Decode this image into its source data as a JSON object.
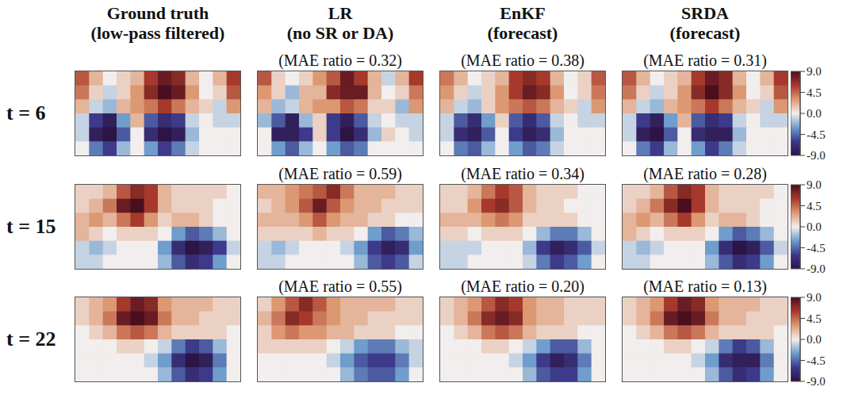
{
  "chart_data": [
    {
      "type": "heatmap",
      "title": "Ground truth",
      "subtitle": "(low-pass filtered)",
      "row_label": "t = 6",
      "tick_labels": false,
      "cells": [
        [
          5,
          2,
          0,
          1,
          2,
          6,
          8,
          7,
          2,
          0,
          2,
          6
        ],
        [
          4,
          1,
          -1,
          1,
          3,
          7,
          9,
          8,
          3,
          0,
          1,
          5
        ],
        [
          2,
          -1,
          -2,
          2,
          3,
          4,
          6,
          4,
          2,
          1,
          -1,
          3
        ],
        [
          -1,
          -6,
          -8,
          -3,
          2,
          -5,
          -7,
          -6,
          -1,
          0,
          -1,
          -1
        ],
        [
          -1,
          -8,
          -9,
          -5,
          0,
          -7,
          -9,
          -8,
          -2,
          0,
          0,
          0
        ],
        [
          0,
          -4,
          -6,
          -2,
          0,
          -3,
          -6,
          -4,
          -1,
          0,
          0,
          0
        ]
      ]
    },
    {
      "type": "heatmap",
      "title": "LR",
      "subtitle": "(no SR or DA)",
      "annotation": "(MAE ratio = 0.32)",
      "tick_labels": false,
      "cells": [
        [
          5,
          1,
          0,
          1,
          3,
          5,
          8,
          6,
          2,
          -1,
          2,
          6
        ],
        [
          3,
          1,
          -2,
          2,
          2,
          7,
          8,
          8,
          2,
          0,
          1,
          4
        ],
        [
          2,
          -2,
          -1,
          2,
          3,
          3,
          5,
          4,
          1,
          1,
          -2,
          3
        ],
        [
          -2,
          -5,
          -8,
          -2,
          1,
          -6,
          -8,
          -5,
          -1,
          0,
          -1,
          -1
        ],
        [
          0,
          -8,
          -8,
          -6,
          1,
          -6,
          -9,
          -7,
          -2,
          1,
          0,
          -1
        ],
        [
          0,
          -3,
          -5,
          -2,
          0,
          -3,
          -5,
          -4,
          0,
          0,
          0,
          0
        ]
      ]
    },
    {
      "type": "heatmap",
      "title": "EnKF",
      "subtitle": "(forecast)",
      "annotation": "(MAE ratio = 0.38)",
      "tick_labels": false,
      "cells": [
        [
          4,
          2,
          0,
          1,
          2,
          6,
          7,
          6,
          2,
          0,
          1,
          5
        ],
        [
          3,
          1,
          -1,
          1,
          3,
          6,
          8,
          7,
          3,
          0,
          1,
          4
        ],
        [
          2,
          -1,
          -2,
          1,
          3,
          4,
          5,
          4,
          2,
          1,
          -1,
          3
        ],
        [
          -1,
          -5,
          -7,
          -3,
          1,
          -5,
          -7,
          -5,
          -1,
          0,
          -1,
          -1
        ],
        [
          -1,
          -7,
          -8,
          -5,
          0,
          -6,
          -8,
          -7,
          -2,
          0,
          0,
          0
        ],
        [
          0,
          -4,
          -5,
          -2,
          0,
          -3,
          -5,
          -4,
          -1,
          0,
          0,
          0
        ]
      ]
    },
    {
      "type": "heatmap",
      "title": "SRDA",
      "subtitle": "(forecast)",
      "annotation": "(MAE ratio = 0.31)",
      "tick_labels": false,
      "cells": [
        [
          5,
          2,
          0,
          1,
          2,
          6,
          8,
          7,
          2,
          0,
          2,
          6
        ],
        [
          4,
          1,
          -1,
          1,
          3,
          7,
          9,
          7,
          3,
          0,
          1,
          5
        ],
        [
          2,
          -1,
          -2,
          2,
          3,
          4,
          6,
          4,
          2,
          1,
          -1,
          3
        ],
        [
          -1,
          -6,
          -8,
          -3,
          2,
          -5,
          -7,
          -6,
          -1,
          0,
          -1,
          -1
        ],
        [
          -1,
          -8,
          -9,
          -5,
          0,
          -7,
          -8,
          -8,
          -2,
          0,
          0,
          0
        ],
        [
          0,
          -4,
          -6,
          -2,
          0,
          -3,
          -6,
          -4,
          -1,
          0,
          0,
          0
        ]
      ],
      "colorbar": {
        "range": [
          -9,
          9
        ],
        "ticks": [
          {
            "value": 9,
            "label": "9.0"
          },
          4.5,
          {
            "value": 0,
            "label": "0.0"
          },
          -4.5,
          {
            "value": -9,
            "label": "-9.0"
          }
        ]
      }
    },
    {
      "type": "heatmap",
      "row_label": "t = 15",
      "tick_labels": false,
      "cells": [
        [
          1,
          1,
          2,
          5,
          7,
          6,
          2,
          1,
          1,
          1,
          1,
          0
        ],
        [
          1,
          2,
          4,
          8,
          9,
          6,
          2,
          1,
          1,
          1,
          0,
          0
        ],
        [
          2,
          3,
          2,
          4,
          6,
          3,
          1,
          2,
          2,
          1,
          0,
          0
        ],
        [
          2,
          1,
          0,
          1,
          1,
          1,
          0,
          -3,
          -5,
          -4,
          -2,
          0
        ],
        [
          -1,
          -2,
          -1,
          0,
          0,
          0,
          -3,
          -7,
          -9,
          -8,
          -6,
          -1
        ],
        [
          -1,
          -1,
          0,
          0,
          0,
          0,
          -2,
          -5,
          -7,
          -6,
          -3,
          0
        ]
      ]
    },
    {
      "type": "heatmap",
      "annotation": "(MAE ratio = 0.59)",
      "tick_labels": false,
      "cells": [
        [
          2,
          2,
          3,
          4,
          5,
          7,
          4,
          2,
          2,
          2,
          1,
          1
        ],
        [
          1,
          2,
          3,
          5,
          8,
          5,
          3,
          2,
          2,
          1,
          1,
          1
        ],
        [
          2,
          2,
          2,
          3,
          5,
          3,
          2,
          2,
          1,
          1,
          0,
          0
        ],
        [
          1,
          1,
          1,
          1,
          2,
          1,
          1,
          0,
          -3,
          -5,
          -4,
          -2
        ],
        [
          -1,
          -2,
          -1,
          0,
          0,
          0,
          -1,
          -3,
          -6,
          -8,
          -7,
          -3
        ],
        [
          -1,
          -1,
          0,
          0,
          0,
          0,
          0,
          -2,
          -5,
          -6,
          -5,
          -1
        ]
      ]
    },
    {
      "type": "heatmap",
      "annotation": "(MAE ratio = 0.34)",
      "tick_labels": false,
      "cells": [
        [
          1,
          1,
          2,
          4,
          6,
          5,
          2,
          1,
          1,
          1,
          0,
          0
        ],
        [
          1,
          1,
          3,
          6,
          7,
          5,
          2,
          1,
          1,
          0,
          0,
          0
        ],
        [
          2,
          2,
          2,
          3,
          4,
          3,
          1,
          1,
          1,
          1,
          0,
          0
        ],
        [
          1,
          1,
          0,
          1,
          1,
          1,
          0,
          -2,
          -4,
          -4,
          -2,
          0
        ],
        [
          -1,
          -1,
          -1,
          0,
          0,
          0,
          -2,
          -6,
          -8,
          -7,
          -5,
          -1
        ],
        [
          -1,
          -1,
          0,
          0,
          0,
          0,
          -1,
          -4,
          -6,
          -5,
          -3,
          0
        ]
      ]
    },
    {
      "type": "heatmap",
      "annotation": "(MAE ratio = 0.28)",
      "tick_labels": false,
      "cells": [
        [
          1,
          1,
          2,
          5,
          7,
          6,
          2,
          1,
          1,
          1,
          1,
          0
        ],
        [
          1,
          2,
          4,
          7,
          9,
          6,
          2,
          1,
          1,
          1,
          0,
          0
        ],
        [
          2,
          3,
          2,
          4,
          6,
          3,
          1,
          2,
          2,
          1,
          0,
          0
        ],
        [
          2,
          1,
          0,
          1,
          1,
          1,
          0,
          -3,
          -5,
          -4,
          -2,
          0
        ],
        [
          -1,
          -2,
          -1,
          0,
          0,
          0,
          -3,
          -7,
          -9,
          -8,
          -5,
          -1
        ],
        [
          -1,
          -1,
          0,
          0,
          0,
          0,
          -2,
          -5,
          -7,
          -6,
          -3,
          0
        ]
      ],
      "colorbar": {
        "range": [
          -9,
          9
        ],
        "ticks": [
          {
            "value": 9,
            "label": "9.0"
          },
          4.5,
          {
            "value": 0,
            "label": "0.0"
          },
          -4.5,
          {
            "value": -9,
            "label": "-9.0"
          }
        ]
      }
    },
    {
      "type": "heatmap",
      "row_label": "t = 22",
      "tick_labels": false,
      "cells": [
        [
          1,
          2,
          3,
          6,
          8,
          7,
          3,
          2,
          2,
          2,
          1,
          1
        ],
        [
          1,
          2,
          4,
          8,
          9,
          8,
          4,
          2,
          2,
          1,
          1,
          1
        ],
        [
          0,
          1,
          2,
          4,
          5,
          4,
          2,
          1,
          1,
          1,
          1,
          0
        ],
        [
          0,
          0,
          0,
          1,
          1,
          0,
          -1,
          -4,
          -6,
          -5,
          -2,
          0
        ],
        [
          0,
          0,
          0,
          0,
          0,
          -1,
          -3,
          -7,
          -9,
          -8,
          -4,
          0
        ],
        [
          0,
          0,
          0,
          0,
          0,
          0,
          -2,
          -5,
          -7,
          -6,
          -3,
          0
        ]
      ]
    },
    {
      "type": "heatmap",
      "annotation": "(MAE ratio = 0.55)",
      "tick_labels": false,
      "cells": [
        [
          1,
          3,
          5,
          7,
          5,
          3,
          2,
          2,
          2,
          2,
          1,
          1
        ],
        [
          2,
          4,
          7,
          6,
          4,
          3,
          2,
          2,
          1,
          1,
          1,
          1
        ],
        [
          1,
          3,
          4,
          3,
          3,
          2,
          2,
          1,
          1,
          1,
          0,
          0
        ],
        [
          1,
          1,
          1,
          1,
          1,
          0,
          -1,
          -3,
          -4,
          -4,
          -2,
          -1
        ],
        [
          0,
          0,
          0,
          0,
          0,
          -1,
          -3,
          -5,
          -6,
          -6,
          -4,
          -1
        ],
        [
          0,
          0,
          0,
          0,
          0,
          0,
          -2,
          -4,
          -5,
          -5,
          -3,
          0
        ]
      ]
    },
    {
      "type": "heatmap",
      "annotation": "(MAE ratio = 0.20)",
      "tick_labels": false,
      "cells": [
        [
          1,
          2,
          3,
          5,
          7,
          6,
          3,
          2,
          2,
          1,
          1,
          1
        ],
        [
          1,
          2,
          4,
          7,
          8,
          7,
          3,
          2,
          2,
          1,
          1,
          1
        ],
        [
          0,
          1,
          2,
          4,
          5,
          4,
          2,
          1,
          1,
          1,
          0,
          0
        ],
        [
          0,
          0,
          0,
          1,
          1,
          0,
          -1,
          -3,
          -5,
          -5,
          -2,
          0
        ],
        [
          0,
          0,
          0,
          0,
          0,
          -1,
          -3,
          -6,
          -8,
          -7,
          -4,
          0
        ],
        [
          0,
          0,
          0,
          0,
          0,
          0,
          -2,
          -5,
          -6,
          -6,
          -3,
          0
        ]
      ]
    },
    {
      "type": "heatmap",
      "annotation": "(MAE ratio = 0.13)",
      "tick_labels": false,
      "cells": [
        [
          1,
          2,
          3,
          6,
          8,
          7,
          3,
          2,
          2,
          2,
          1,
          1
        ],
        [
          1,
          2,
          4,
          8,
          9,
          8,
          4,
          2,
          2,
          1,
          1,
          1
        ],
        [
          0,
          1,
          2,
          4,
          5,
          4,
          2,
          1,
          1,
          1,
          1,
          0
        ],
        [
          0,
          0,
          0,
          1,
          1,
          0,
          -1,
          -4,
          -6,
          -5,
          -2,
          0
        ],
        [
          0,
          0,
          0,
          0,
          0,
          -1,
          -3,
          -7,
          -8,
          -8,
          -4,
          0
        ],
        [
          0,
          0,
          0,
          0,
          0,
          0,
          -2,
          -5,
          -7,
          -6,
          -3,
          0
        ]
      ],
      "colorbar": {
        "range": [
          -9,
          9
        ],
        "ticks": [
          {
            "value": 9,
            "label": "9.0"
          },
          4.5,
          {
            "value": 0,
            "label": "0.0"
          },
          -4.5,
          {
            "value": -9,
            "label": "-9.0"
          }
        ]
      }
    }
  ]
}
